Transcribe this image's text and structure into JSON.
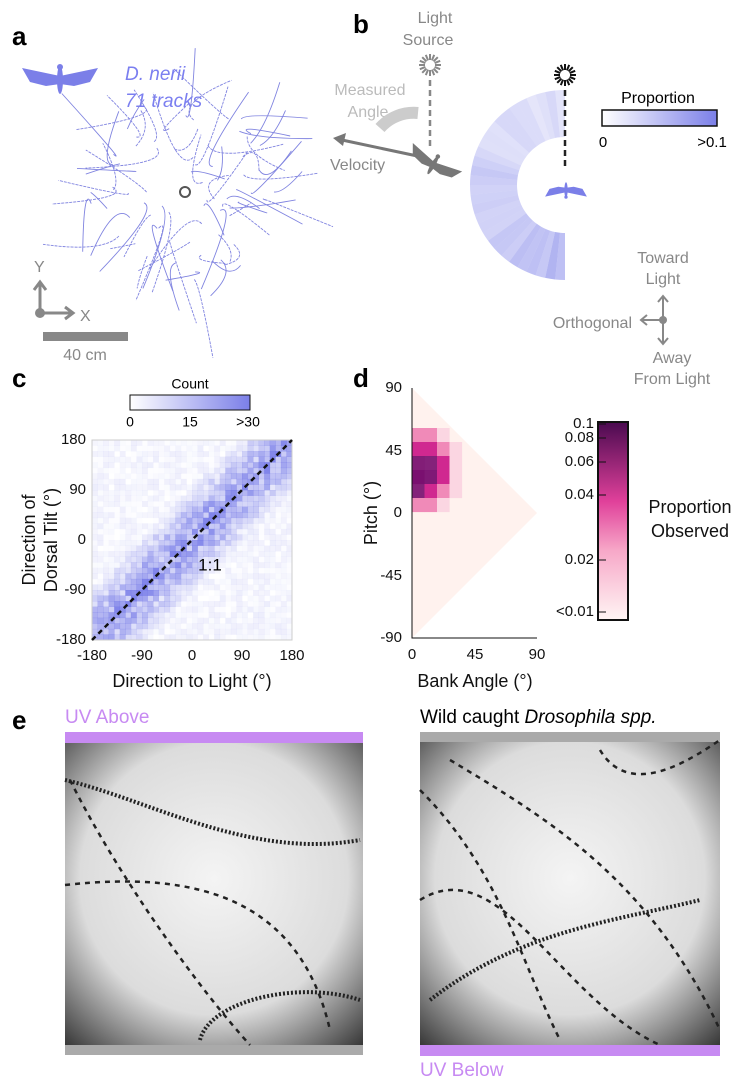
{
  "panels": {
    "a": {
      "label": "a",
      "species": "D. nerii",
      "tracks": "71 tracks",
      "axis_y": "Y",
      "axis_x": "X",
      "scale": "40 cm"
    },
    "b": {
      "label": "b",
      "light_source": [
        "Light",
        "Source"
      ],
      "measured_angle": [
        "Measured",
        "Angle"
      ],
      "velocity": "Velocity",
      "colorbar_title": "Proportion",
      "colorbar_min": "0",
      "colorbar_max": ">0.1",
      "toward": [
        "Toward",
        "Light"
      ],
      "orthogonal": "Orthogonal",
      "away": [
        "Away",
        "From Light"
      ]
    },
    "c": {
      "label": "c",
      "colorbar_title": "Count",
      "colorbar_ticks": [
        "0",
        "15",
        ">30"
      ],
      "yticks": [
        "180",
        "90",
        "0",
        "-90",
        "-180"
      ],
      "xticks": [
        "-180",
        "-90",
        "0",
        "90",
        "180"
      ],
      "ytitle": [
        "Direction of",
        "Dorsal Tilt (°)"
      ],
      "xtitle": "Direction to Light (°)",
      "diagonal_label": "1:1"
    },
    "d": {
      "label": "d",
      "yticks": [
        "90",
        "45",
        "0",
        "-45",
        "-90"
      ],
      "xticks": [
        "0",
        "45",
        "90"
      ],
      "ytitle": "Pitch (°)",
      "xtitle": "Bank Angle (°)",
      "colorbar_ticks": [
        "0.1",
        "0.08",
        "0.06",
        "0.04",
        "0.02",
        "<0.01"
      ],
      "colorbar_title": [
        "Proportion",
        "Observed"
      ]
    },
    "e": {
      "label": "e",
      "left_caption": "UV Above",
      "right_caption_prefix": "Wild caught ",
      "right_caption_italic": "Drosophila spp.",
      "bottom_caption": "UV Below"
    }
  }
}
